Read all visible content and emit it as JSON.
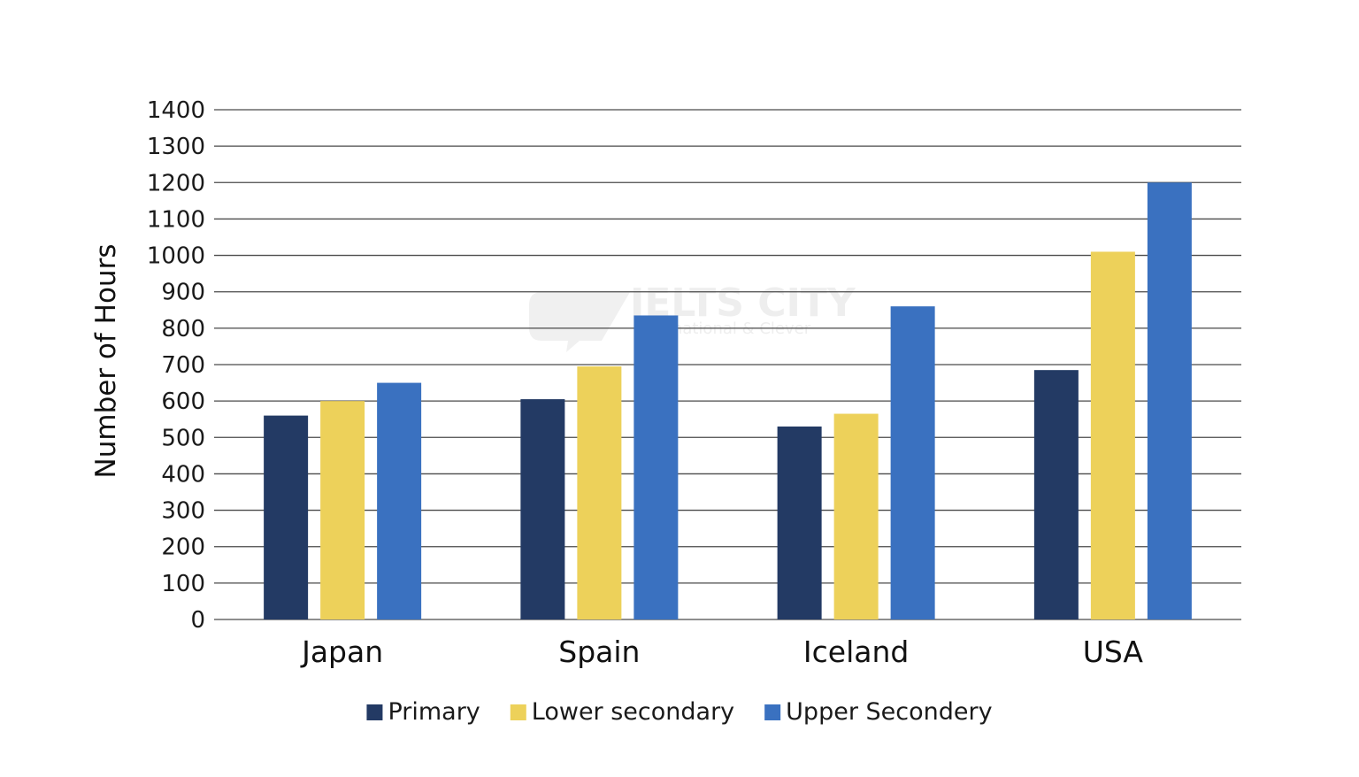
{
  "chart_data": {
    "type": "bar",
    "ylabel": "Number of Hours",
    "ylim": [
      0,
      1400
    ],
    "yticks": [
      0,
      100,
      200,
      300,
      400,
      500,
      600,
      700,
      800,
      900,
      1000,
      1100,
      1200,
      1300,
      1400
    ],
    "categories": [
      "Japan",
      "Spain",
      "Iceland",
      "USA"
    ],
    "series": [
      {
        "name": "Primary",
        "color": "#233a64",
        "values": [
          560,
          605,
          530,
          685
        ]
      },
      {
        "name": "Lower secondary",
        "color": "#edd15a",
        "values": [
          600,
          695,
          565,
          1010
        ]
      },
      {
        "name": "Upper Secondery",
        "color": "#3a71c0",
        "values": [
          650,
          835,
          860,
          1200
        ]
      }
    ],
    "grid": true,
    "legend_position": "bottom-center"
  },
  "watermark": {
    "text": "IELTS CITY",
    "subtext": "International & Clever"
  }
}
